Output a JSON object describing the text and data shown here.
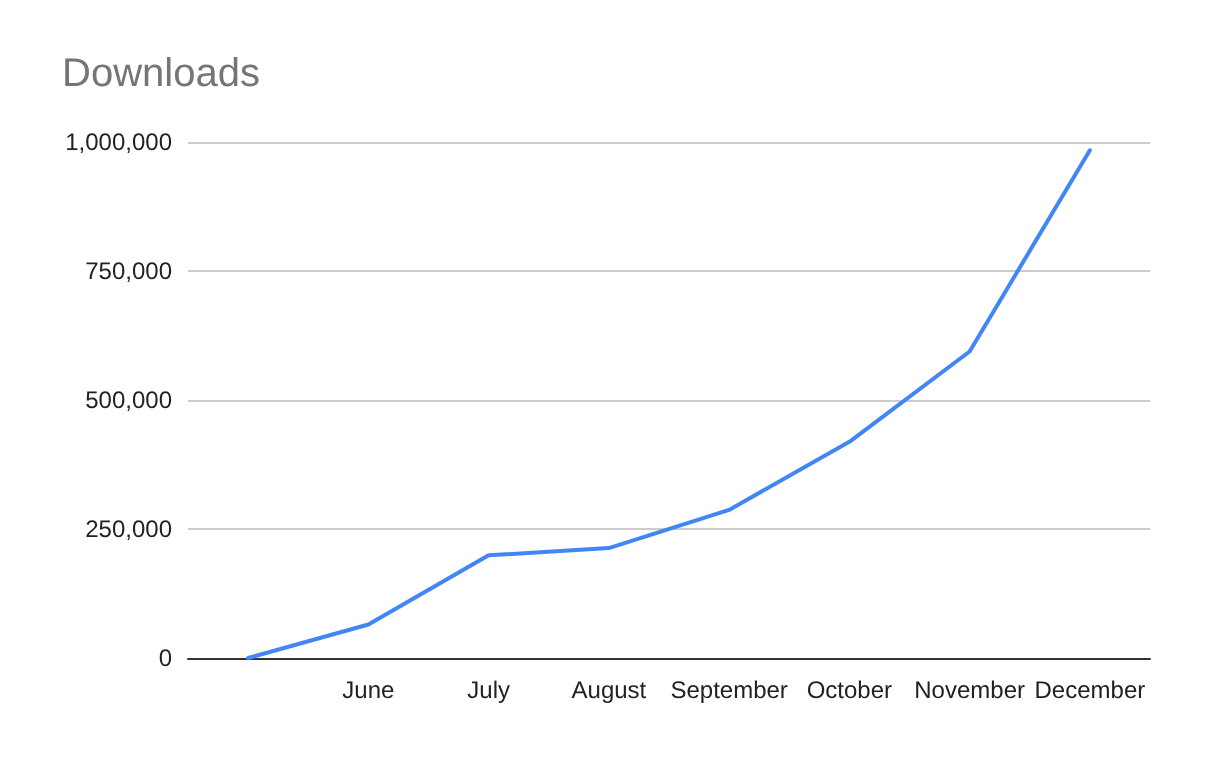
{
  "chart_data": {
    "type": "line",
    "title": "Downloads",
    "categories": [
      null,
      "June",
      "July",
      "August",
      "September",
      "October",
      "November",
      "December"
    ],
    "series": [
      {
        "color": "#4285f4",
        "values": [
          0,
          65000,
          199000,
          213000,
          287000,
          419000,
          594000,
          984000
        ]
      }
    ],
    "ylim": [
      0,
      1000000
    ],
    "yticks": [
      {
        "value": 0,
        "label": "0"
      },
      {
        "value": 250000,
        "label": "250,000"
      },
      {
        "value": 500000,
        "label": "500,000"
      },
      {
        "value": 750000,
        "label": "750,000"
      },
      {
        "value": 1000000,
        "label": "1,000,000"
      }
    ],
    "grid": "y",
    "marker": "none",
    "line_style": "solid"
  }
}
